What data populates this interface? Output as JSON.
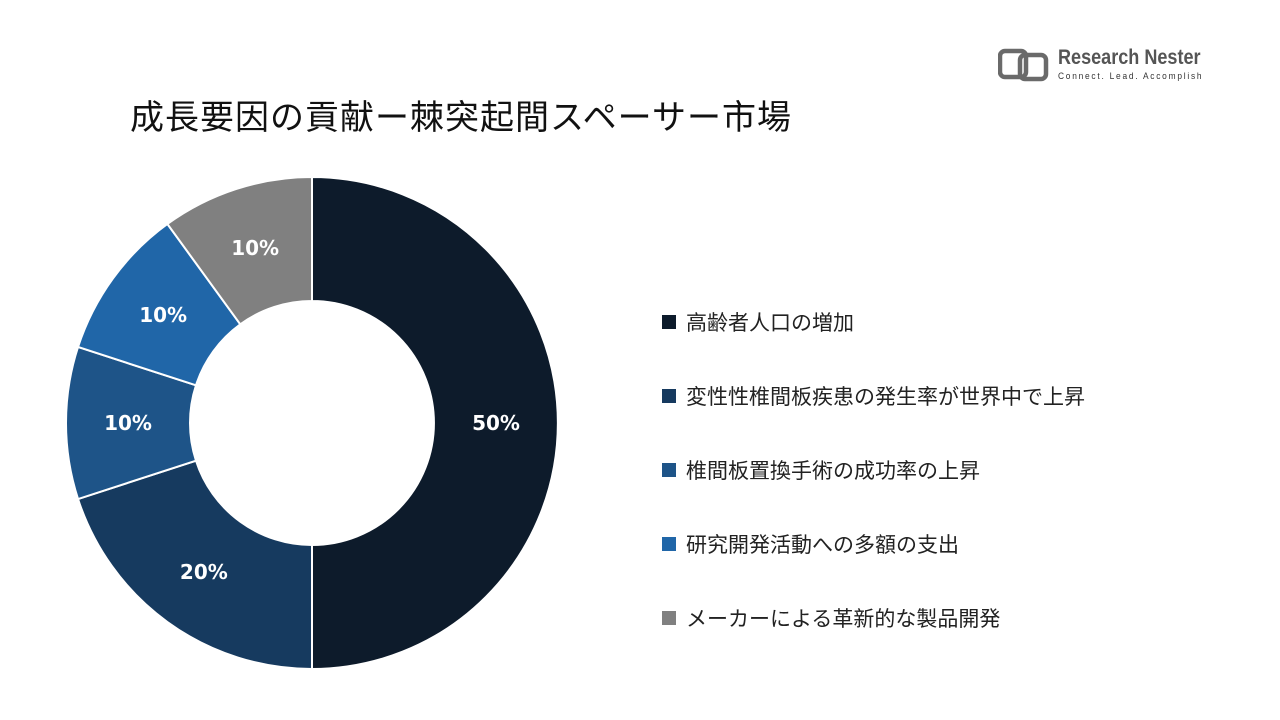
{
  "title": "成長要因の貢献ー棘突起間スペーサー市場",
  "logo": {
    "name": "Research Nester",
    "tagline": "Connect. Lead. Accomplish"
  },
  "chart_data": {
    "type": "pie",
    "donut": true,
    "categories": [
      "高齢者人口の増加",
      "変性性椎間板疾患の発生率が世界中で上昇",
      "椎間板置換手術の成功率の上昇",
      "研究開発活動への多額の支出",
      "メーカーによる革新的な製品開発"
    ],
    "values": [
      50,
      20,
      10,
      10,
      10
    ],
    "labels": [
      "50%",
      "20%",
      "10%",
      "10%",
      "10%"
    ],
    "colors": [
      "#0d1b2b",
      "#163a5f",
      "#1e5488",
      "#2066a8",
      "#808080"
    ],
    "legend_position": "right"
  }
}
